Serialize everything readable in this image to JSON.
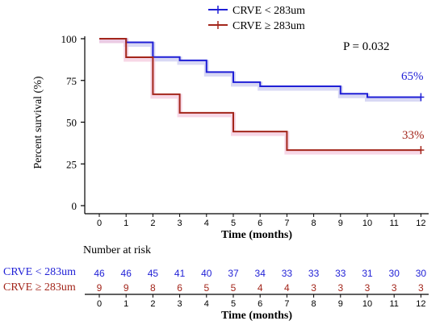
{
  "chart_data": {
    "type": "line",
    "subtype": "kaplan-meier",
    "title": "",
    "xlabel": "Time (months)",
    "ylabel": "Percent survival (%)",
    "xlim": [
      0,
      12
    ],
    "ylim": [
      0,
      100
    ],
    "x_ticks": [
      "0",
      "1",
      "2",
      "3",
      "4",
      "5",
      "6",
      "7",
      "8",
      "9",
      "10",
      "11",
      "12"
    ],
    "y_ticks": [
      "0",
      "25",
      "50",
      "75",
      "100"
    ],
    "grid": false,
    "legend_position": "top-center",
    "annotation": "P = 0.032",
    "series": [
      {
        "name": "CRVE < 283um",
        "color": "#1f1fd6",
        "band_color": "#c8c8f0",
        "end_label": "65%",
        "step_x": [
          0,
          1,
          2,
          3,
          4,
          5,
          6,
          9,
          10,
          12
        ],
        "step_y": [
          100,
          97.8,
          89,
          87,
          80,
          74,
          71.5,
          67,
          65,
          65
        ]
      },
      {
        "name": "CRVE ≥ 283um",
        "color": "#a3261b",
        "band_color": "#f3c6dc",
        "end_label": "33%",
        "step_x": [
          0,
          1,
          2,
          3,
          5,
          7,
          12
        ],
        "step_y": [
          100,
          88.9,
          66.7,
          55.6,
          44.4,
          33.3,
          33.3
        ]
      }
    ]
  },
  "risk_table": {
    "title": "Number at risk",
    "xlabel": "Time (months)",
    "times": [
      "0",
      "1",
      "2",
      "3",
      "4",
      "5",
      "6",
      "7",
      "8",
      "9",
      "10",
      "11",
      "12"
    ],
    "rows": [
      {
        "label": "CRVE < 283um",
        "color": "#1f1fd6",
        "counts": [
          "46",
          "46",
          "45",
          "41",
          "40",
          "37",
          "34",
          "33",
          "33",
          "33",
          "31",
          "30",
          "30"
        ]
      },
      {
        "label": "CRVE  ≥ 283um",
        "color": "#a3261b",
        "counts": [
          "9",
          "9",
          "8",
          "6",
          "5",
          "5",
          "4",
          "4",
          "3",
          "3",
          "3",
          "3",
          "3"
        ]
      }
    ]
  }
}
